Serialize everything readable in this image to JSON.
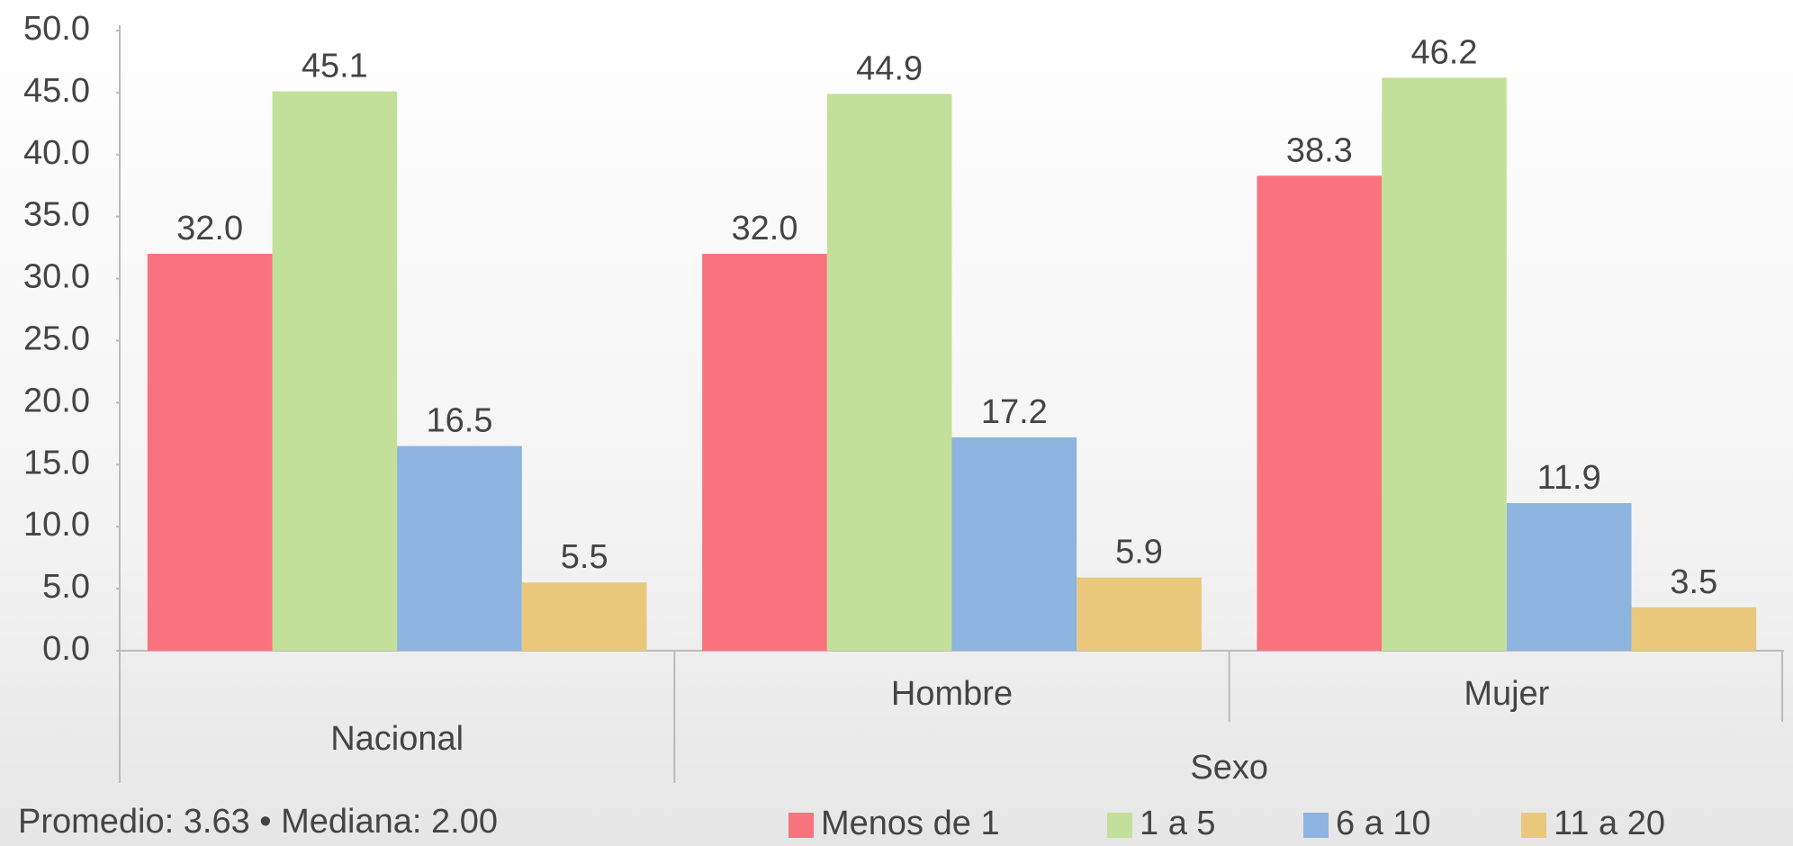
{
  "chart_data": {
    "type": "bar",
    "categories": [
      "Nacional",
      "Hombre",
      "Mujer"
    ],
    "category_group": "Sexo",
    "series": [
      {
        "name": "Menos de 1",
        "color": "#f8737e",
        "values": [
          32.0,
          32.0,
          38.3
        ],
        "value_labels": [
          "32.0",
          "32.0",
          "38.3"
        ]
      },
      {
        "name": "1 a 5",
        "color": "#c3e09b",
        "values": [
          45.1,
          44.9,
          46.2
        ],
        "value_labels": [
          "45.1",
          "44.9",
          "46.2"
        ]
      },
      {
        "name": "6 a 10",
        "color": "#8cb4de",
        "values": [
          16.5,
          17.2,
          11.9
        ],
        "value_labels": [
          "16.5",
          "17.2",
          "11.9"
        ]
      },
      {
        "name": "11 a 20",
        "color": "#e9c87c",
        "values": [
          5.5,
          5.9,
          3.5
        ],
        "value_labels": [
          "5.5",
          "5.9",
          "3.5"
        ]
      }
    ],
    "ylim": [
      0,
      50
    ],
    "yticks": [
      {
        "value": 0,
        "label": "0.0"
      },
      {
        "value": 5,
        "label": "5.0"
      },
      {
        "value": 10,
        "label": "10.0"
      },
      {
        "value": 15,
        "label": "15.0"
      },
      {
        "value": 20,
        "label": "20.0"
      },
      {
        "value": 25,
        "label": "25.0"
      },
      {
        "value": 30,
        "label": "30.0"
      },
      {
        "value": 35,
        "label": "35.0"
      },
      {
        "value": 40,
        "label": "40.0"
      },
      {
        "value": 45,
        "label": "45.0"
      },
      {
        "value": 50,
        "label": "50.0"
      }
    ],
    "annotation": "Promedio: 3.63 • Mediana: 2.00",
    "grid": false
  }
}
